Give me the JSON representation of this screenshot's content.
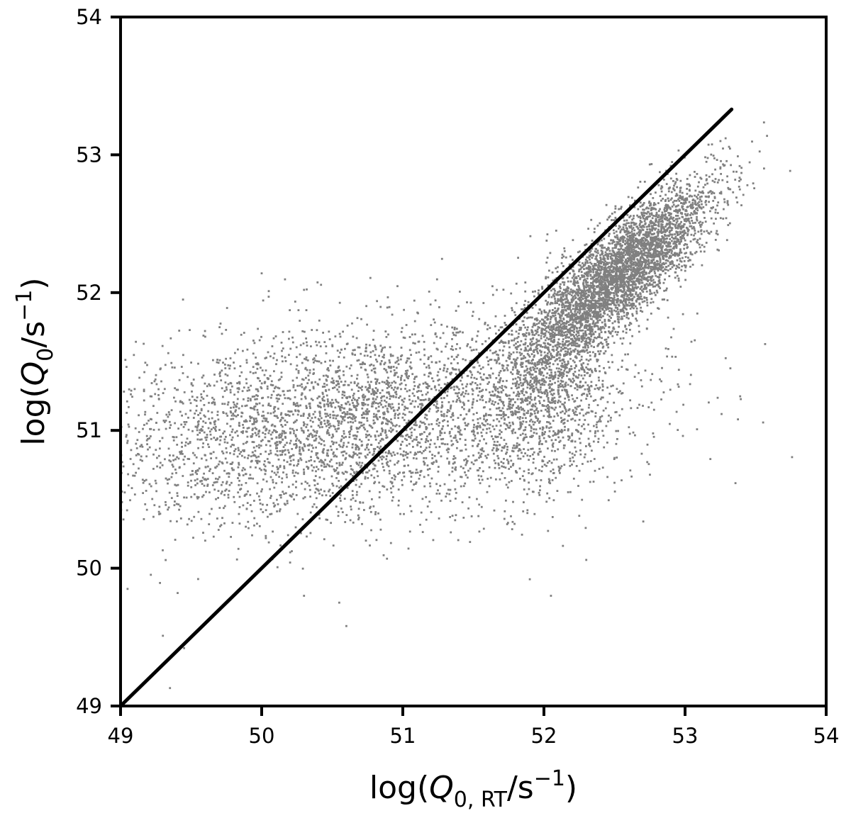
{
  "chart_data": {
    "type": "scatter",
    "title": "",
    "xlabel": {
      "prefix": "log(",
      "var": "Q",
      "sub": "0, RT",
      "unit": "/s",
      "sup": "−1",
      "suffix": ")"
    },
    "ylabel": {
      "prefix": "log(",
      "var": "Q",
      "sub": "0",
      "unit": "/s",
      "sup": "−1",
      "suffix": ")"
    },
    "xlim": [
      49,
      54
    ],
    "ylim": [
      49,
      54
    ],
    "xticks": [
      "49",
      "50",
      "51",
      "52",
      "53",
      "54"
    ],
    "yticks": [
      "49",
      "50",
      "51",
      "52",
      "53",
      "54"
    ],
    "grid": false,
    "colors": {
      "points": "#808080",
      "line": "#000000"
    },
    "reference_line": {
      "name": "one-to-one",
      "x": [
        49.0,
        53.33
      ],
      "y": [
        49.0,
        53.33
      ]
    },
    "point_cloud": {
      "approx_count": 9000,
      "clusters": [
        {
          "x_mean": 52.55,
          "y_mean": 52.15,
          "x_sd": 0.32,
          "y_sd": 0.32,
          "corr": 0.82,
          "fraction": 0.45
        },
        {
          "x_mean": 52.05,
          "y_mean": 51.35,
          "x_sd": 0.22,
          "y_sd": 0.38,
          "corr": 0.3,
          "fraction": 0.12
        },
        {
          "x_mean": 50.6,
          "y_mean": 51.05,
          "x_sd": 0.95,
          "y_sd": 0.36,
          "corr": 0.3,
          "fraction": 0.43
        }
      ]
    },
    "points": [
      [
        49.35,
        49.13
      ],
      [
        49.45,
        49.42
      ],
      [
        49.3,
        49.51
      ],
      [
        50.0,
        52.14
      ],
      [
        50.05,
        51.97
      ],
      [
        50.3,
        49.8
      ],
      [
        50.55,
        49.75
      ],
      [
        50.6,
        49.58
      ],
      [
        52.05,
        49.8
      ],
      [
        51.9,
        49.92
      ],
      [
        52.3,
        50.06
      ],
      [
        52.5,
        50.8
      ],
      [
        53.32,
        52.75
      ],
      [
        53.25,
        52.9
      ],
      [
        52.75,
        52.93
      ],
      [
        49.6,
        51.68
      ],
      [
        49.1,
        51.3
      ],
      [
        52.25,
        50.38
      ],
      [
        52.5,
        50.62
      ],
      [
        49.05,
        49.85
      ]
    ]
  }
}
